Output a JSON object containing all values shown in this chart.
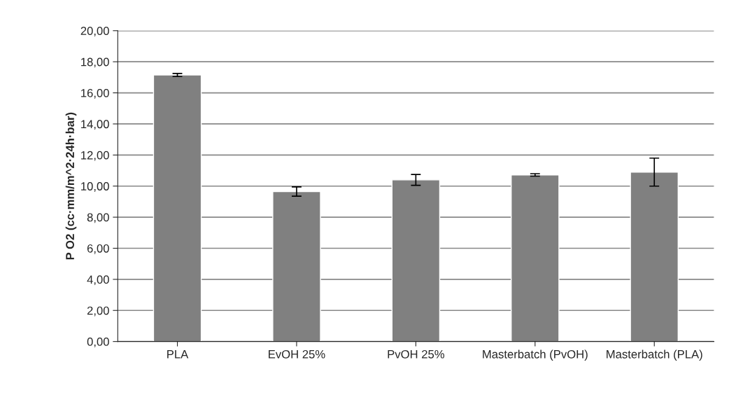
{
  "chart_data": {
    "type": "bar",
    "ylabel": "P O2 (cc·mm/m^2·24h·bar)",
    "categories": [
      "PLA",
      "EvOH 25%",
      "PvOH 25%",
      "Masterbatch (PvOH)",
      "Masterbatch (PLA)"
    ],
    "values": [
      17.15,
      9.65,
      10.4,
      10.72,
      10.9
    ],
    "errors": [
      0.1,
      0.3,
      0.35,
      0.08,
      0.9
    ],
    "color": "#808080",
    "ylim": [
      0,
      20
    ],
    "yticks": [
      {
        "value": 0,
        "label": "0,00"
      },
      {
        "value": 2,
        "label": "2,00"
      },
      {
        "value": 4,
        "label": "4,00"
      },
      {
        "value": 6,
        "label": "6,00"
      },
      {
        "value": 8,
        "label": "8,00"
      },
      {
        "value": 10,
        "label": "10,00"
      },
      {
        "value": 12,
        "label": "12,00"
      },
      {
        "value": 14,
        "label": "14,00"
      },
      {
        "value": 16,
        "label": "16,00"
      },
      {
        "value": 18,
        "label": "18,00"
      },
      {
        "value": 20,
        "label": "20,00"
      }
    ],
    "grid": "y",
    "legend": false
  }
}
